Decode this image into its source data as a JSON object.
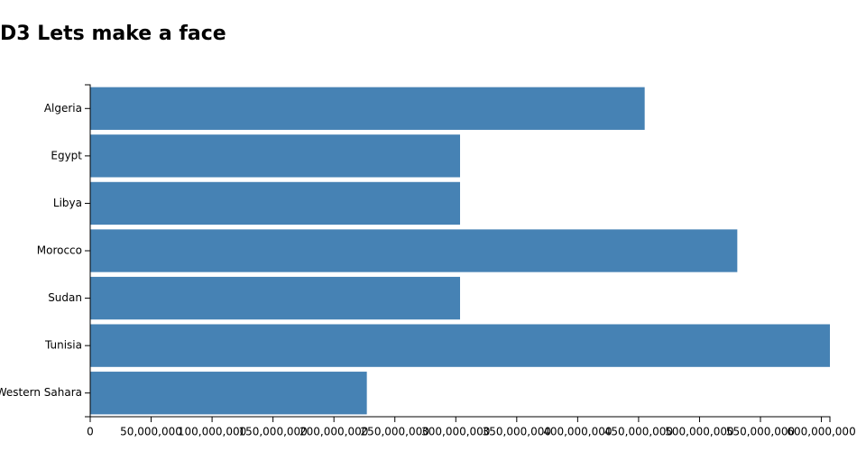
{
  "chart_data": {
    "type": "bar",
    "orientation": "horizontal",
    "title": "D3 Lets make a face",
    "categories": [
      "Algeria",
      "Egypt",
      "Libya",
      "Morocco",
      "Sudan",
      "Tunisia",
      "Western Sahara"
    ],
    "values": [
      455000000,
      303500000,
      303500000,
      531000000,
      303500000,
      607000000,
      227000000
    ],
    "color": "#4682b4",
    "xlim": [
      0,
      607000000
    ],
    "xticks": [
      0,
      {
        "value": 50000000,
        "label": "50,000,000"
      },
      {
        "value": 100000000,
        "label": "100,000,000"
      },
      {
        "value": 150000000,
        "label": "150,000,000"
      },
      {
        "value": 200000000,
        "label": "200,000,000"
      },
      {
        "value": 250000000,
        "label": "250,000,000"
      },
      {
        "value": 300000000,
        "label": "300,000,000"
      },
      {
        "value": 350000000,
        "label": "350,000,000"
      },
      {
        "value": 400000000,
        "label": "400,000,000"
      },
      {
        "value": 450000000,
        "label": "450,000,000"
      },
      {
        "value": 500000000,
        "label": "500,000,000"
      },
      {
        "value": 550000000,
        "label": "550,000,000"
      },
      {
        "value": 600000000,
        "label": "600,000,000"
      }
    ]
  }
}
